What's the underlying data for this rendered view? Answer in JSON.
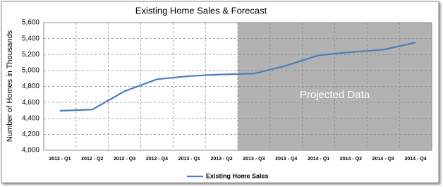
{
  "chart_data": {
    "type": "line",
    "title": "Existing Home Sales & Forecast",
    "y_label": "Number  of  Homes  in Thousands",
    "categories": [
      "2012 - Q1",
      "2012 - Q2",
      "2012 - Q3",
      "2012 - Q4",
      "2013 - Q1",
      "2013 - Q2",
      "2013 - Q3",
      "2013 - Q4",
      "2014 - Q1",
      "2014 - Q2",
      "2014 - Q3",
      "2014 - Q4"
    ],
    "series": [
      {
        "name": "Existing Home Sales",
        "color": "#4a7ebb",
        "values": [
          4495,
          4510,
          4740,
          4890,
          4930,
          4950,
          4960,
          5060,
          5190,
          5230,
          5260,
          5350
        ]
      }
    ],
    "ylim": [
      4000,
      5600
    ],
    "yticks": [
      {
        "value": 4000,
        "label": "4,000"
      },
      {
        "value": 4200,
        "label": "4,200"
      },
      {
        "value": 4400,
        "label": "4,400"
      },
      {
        "value": 4600,
        "label": "4,600"
      },
      {
        "value": 4800,
        "label": "4,800"
      },
      {
        "value": 5000,
        "label": "5,000"
      },
      {
        "value": 5200,
        "label": "5,200"
      },
      {
        "value": 5400,
        "label": "5,400"
      },
      {
        "value": 5600,
        "label": "5,600"
      }
    ],
    "grid": true,
    "shaded_region": {
      "from": "2013 - Q3",
      "label": "Projected  Data",
      "color": "#b2b2b2"
    },
    "legend": "bottom"
  }
}
